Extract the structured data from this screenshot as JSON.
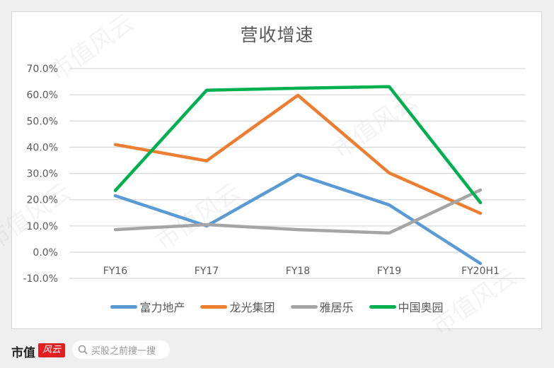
{
  "watermark": "市值风云",
  "footer": {
    "logo_text": "市值",
    "logo_badge": "风云",
    "search_placeholder": "买股之前搜一搜",
    "search_icon": "search-icon"
  },
  "colors": {
    "富力地产": "#5b9bd5",
    "龙光集团": "#ed7d31",
    "雅居乐": "#a5a5a5",
    "中国奥园": "#00b050"
  },
  "chart_data": {
    "type": "line",
    "title": "营收增速",
    "xlabel": "",
    "ylabel": "",
    "categories": [
      "FY16",
      "FY17",
      "FY18",
      "FY19",
      "FY20H1"
    ],
    "yticks": [
      "70.0%",
      "60.0%",
      "50.0%",
      "40.0%",
      "30.0%",
      "20.0%",
      "10.0%",
      "0.0%",
      "-10.0%"
    ],
    "ylim": [
      -10,
      70
    ],
    "grid": true,
    "legend_position": "bottom",
    "series": [
      {
        "name": "富力地产",
        "color": "#5b9bd5",
        "values": [
          21.5,
          10.0,
          29.6,
          18.0,
          -4.3
        ]
      },
      {
        "name": "龙光集团",
        "color": "#ed7d31",
        "values": [
          41.0,
          34.8,
          59.8,
          30.2,
          14.8
        ]
      },
      {
        "name": "雅居乐",
        "color": "#a5a5a5",
        "values": [
          8.6,
          10.5,
          8.6,
          7.3,
          23.7
        ]
      },
      {
        "name": "中国奥园",
        "color": "#00b050",
        "values": [
          23.5,
          61.7,
          62.5,
          63.1,
          18.9
        ]
      }
    ]
  }
}
